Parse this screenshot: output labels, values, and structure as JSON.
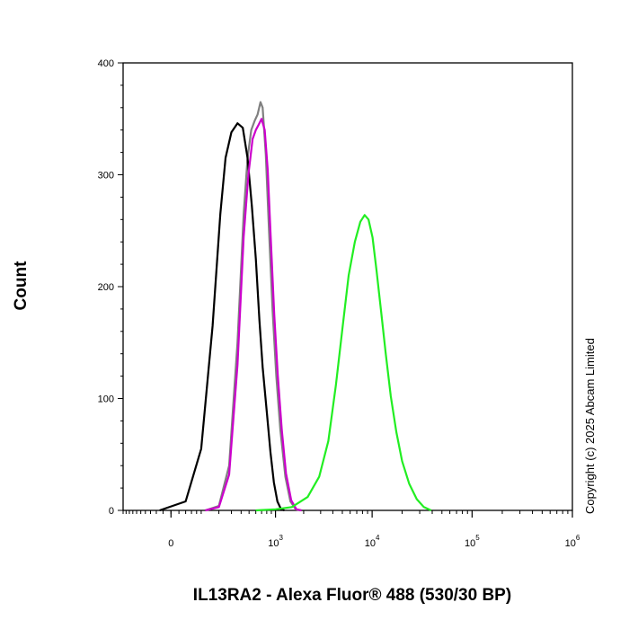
{
  "chart_data": {
    "type": "line",
    "title": "",
    "xlabel": "IL13RA2 - Alexa Fluor® 488 (530/30 BP)",
    "ylabel": "Count",
    "x_scale": "biexponential",
    "xlim": [
      -200,
      1000000
    ],
    "ylim": [
      0,
      400
    ],
    "y_ticks": [
      0,
      100,
      200,
      300,
      400
    ],
    "x_ticks": [
      {
        "value": 0,
        "base": "0",
        "exp": ""
      },
      {
        "value": 1000,
        "base": "10",
        "exp": "3"
      },
      {
        "value": 10000,
        "base": "10",
        "exp": "4"
      },
      {
        "value": 100000,
        "base": "10",
        "exp": "5"
      },
      {
        "value": 1000000,
        "base": "10",
        "exp": "6"
      }
    ],
    "grid": false,
    "legend": "none",
    "series": [
      {
        "color": "#808080",
        "points": [
          [
            120,
            0
          ],
          [
            200,
            4
          ],
          [
            280,
            40
          ],
          [
            360,
            150
          ],
          [
            430,
            265
          ],
          [
            480,
            315
          ],
          [
            530,
            340
          ],
          [
            580,
            348
          ],
          [
            630,
            354
          ],
          [
            680,
            365
          ],
          [
            720,
            360
          ],
          [
            780,
            318
          ],
          [
            850,
            248
          ],
          [
            930,
            178
          ],
          [
            1020,
            120
          ],
          [
            1130,
            72
          ],
          [
            1280,
            30
          ],
          [
            1450,
            8
          ],
          [
            1650,
            1
          ],
          [
            1850,
            0
          ]
        ]
      },
      {
        "color": "#000000",
        "points": [
          [
            -30,
            0
          ],
          [
            40,
            8
          ],
          [
            100,
            55
          ],
          [
            160,
            165
          ],
          [
            210,
            265
          ],
          [
            250,
            315
          ],
          [
            300,
            338
          ],
          [
            360,
            346
          ],
          [
            420,
            342
          ],
          [
            480,
            315
          ],
          [
            540,
            272
          ],
          [
            600,
            225
          ],
          [
            660,
            170
          ],
          [
            720,
            128
          ],
          [
            800,
            88
          ],
          [
            880,
            52
          ],
          [
            960,
            25
          ],
          [
            1050,
            8
          ],
          [
            1150,
            1
          ],
          [
            1250,
            0
          ]
        ]
      },
      {
        "color": "#cc00cc",
        "points": [
          [
            120,
            0
          ],
          [
            200,
            3
          ],
          [
            280,
            32
          ],
          [
            360,
            130
          ],
          [
            430,
            245
          ],
          [
            490,
            300
          ],
          [
            550,
            332
          ],
          [
            600,
            340
          ],
          [
            650,
            345
          ],
          [
            700,
            350
          ],
          [
            760,
            340
          ],
          [
            820,
            305
          ],
          [
            890,
            240
          ],
          [
            970,
            175
          ],
          [
            1060,
            120
          ],
          [
            1170,
            72
          ],
          [
            1300,
            33
          ],
          [
            1480,
            9
          ],
          [
            1680,
            1
          ],
          [
            1900,
            0
          ]
        ]
      },
      {
        "color": "#22ee22",
        "points": [
          [
            600,
            0
          ],
          [
            1000,
            1
          ],
          [
            1500,
            3
          ],
          [
            2200,
            12
          ],
          [
            2900,
            30
          ],
          [
            3600,
            62
          ],
          [
            4300,
            112
          ],
          [
            5000,
            162
          ],
          [
            5800,
            210
          ],
          [
            6700,
            240
          ],
          [
            7600,
            258
          ],
          [
            8400,
            264
          ],
          [
            9200,
            260
          ],
          [
            10100,
            244
          ],
          [
            11100,
            214
          ],
          [
            12300,
            178
          ],
          [
            13700,
            140
          ],
          [
            15400,
            102
          ],
          [
            17500,
            70
          ],
          [
            20000,
            44
          ],
          [
            23500,
            24
          ],
          [
            28000,
            10
          ],
          [
            33000,
            3
          ],
          [
            39000,
            0
          ]
        ]
      }
    ]
  },
  "copyright": "Copyright (c) 2025 Abcam Limited"
}
